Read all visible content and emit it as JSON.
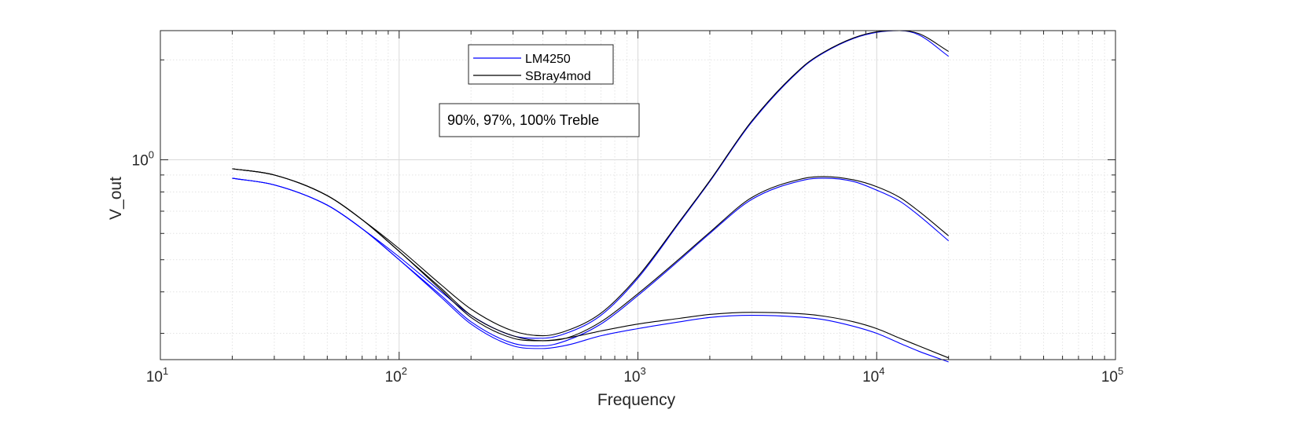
{
  "chart_data": {
    "type": "line",
    "title": "",
    "xlabel": "Frequency",
    "ylabel": "V_out",
    "xscale": "log",
    "yscale": "log",
    "xlim": [
      10,
      100000
    ],
    "ylim": [
      0.25,
      2.45
    ],
    "x_ticks": [
      {
        "value": 10,
        "base": "10",
        "exp": "1"
      },
      {
        "value": 100,
        "base": "10",
        "exp": "2"
      },
      {
        "value": 1000,
        "base": "10",
        "exp": "3"
      },
      {
        "value": 10000,
        "base": "10",
        "exp": "4"
      },
      {
        "value": 100000,
        "base": "10",
        "exp": "5"
      }
    ],
    "y_ticks": [
      {
        "value": 1,
        "base": "10",
        "exp": "0"
      }
    ],
    "grid": true,
    "minor_grid": true,
    "legend": {
      "placement": "top-center",
      "entries": [
        {
          "name": "LM4250",
          "color": "#0000ff"
        },
        {
          "name": "SBray4mod",
          "color": "#000000"
        }
      ]
    },
    "annotation": "90%, 97%, 100% Treble",
    "x": [
      20,
      30,
      50,
      70,
      100,
      150,
      200,
      300,
      400,
      500,
      700,
      1000,
      1500,
      2000,
      3000,
      5000,
      6000,
      8000,
      10000,
      12500,
      15000,
      20000
    ],
    "series": [
      {
        "name": "LM4250",
        "curve": "100% Treble",
        "color": "#0000ff",
        "values": [
          0.88,
          0.84,
          0.73,
          0.62,
          0.51,
          0.4,
          0.34,
          0.295,
          0.29,
          0.3,
          0.34,
          0.44,
          0.65,
          0.86,
          1.3,
          1.92,
          2.1,
          2.32,
          2.42,
          2.45,
          2.38,
          2.05
        ]
      },
      {
        "name": "SBray4mod",
        "curve": "100% Treble",
        "color": "#000000",
        "values": [
          0.94,
          0.9,
          0.78,
          0.66,
          0.54,
          0.42,
          0.355,
          0.305,
          0.295,
          0.305,
          0.345,
          0.445,
          0.655,
          0.865,
          1.31,
          1.93,
          2.11,
          2.33,
          2.43,
          2.45,
          2.4,
          2.12
        ]
      },
      {
        "name": "LM4250",
        "curve": "97% Treble",
        "color": "#0000ff",
        "values": [
          0.88,
          0.84,
          0.73,
          0.62,
          0.5,
          0.39,
          0.325,
          0.28,
          0.275,
          0.285,
          0.32,
          0.39,
          0.5,
          0.6,
          0.76,
          0.87,
          0.88,
          0.86,
          0.81,
          0.75,
          0.68,
          0.57
        ]
      },
      {
        "name": "SBray4mod",
        "curve": "97% Treble",
        "color": "#000000",
        "values": [
          0.94,
          0.9,
          0.78,
          0.66,
          0.53,
          0.41,
          0.34,
          0.295,
          0.285,
          0.29,
          0.325,
          0.395,
          0.505,
          0.605,
          0.77,
          0.88,
          0.89,
          0.87,
          0.83,
          0.77,
          0.7,
          0.59
        ]
      },
      {
        "name": "LM4250",
        "curve": "90% Treble",
        "color": "#0000ff",
        "values": [
          0.88,
          0.84,
          0.73,
          0.62,
          0.5,
          0.385,
          0.32,
          0.275,
          0.27,
          0.276,
          0.295,
          0.31,
          0.325,
          0.335,
          0.34,
          0.335,
          0.33,
          0.315,
          0.3,
          0.28,
          0.265,
          0.246
        ]
      },
      {
        "name": "SBray4mod",
        "curve": "90% Treble",
        "color": "#000000",
        "values": [
          0.94,
          0.9,
          0.78,
          0.66,
          0.53,
          0.405,
          0.335,
          0.29,
          0.285,
          0.29,
          0.305,
          0.32,
          0.333,
          0.342,
          0.347,
          0.343,
          0.338,
          0.325,
          0.31,
          0.29,
          0.275,
          0.253
        ]
      }
    ]
  }
}
